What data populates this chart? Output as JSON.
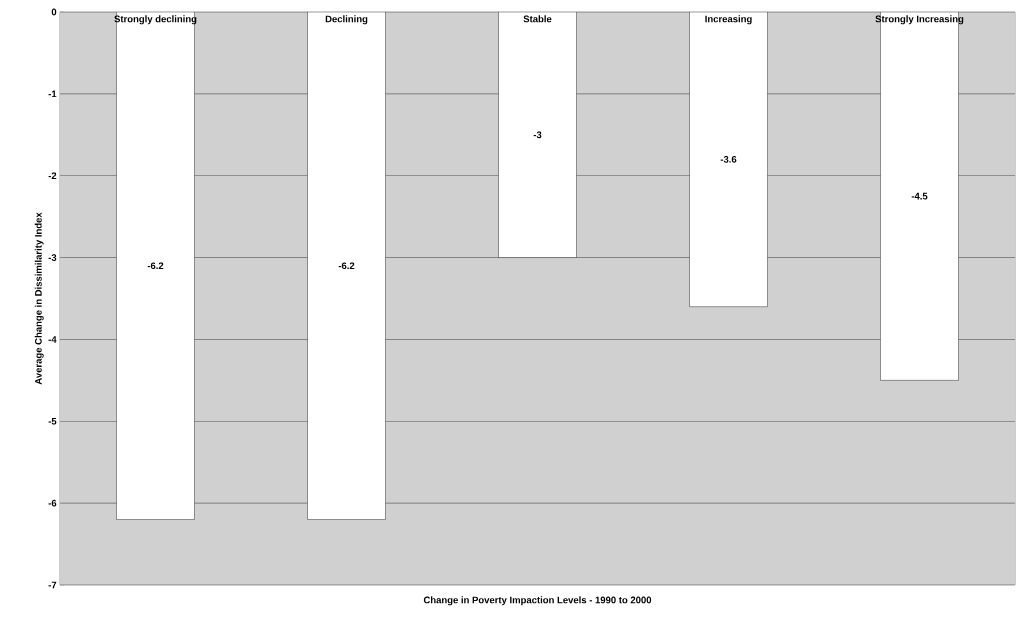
{
  "chart_data": {
    "type": "bar",
    "xlabel": "Change in Poverty Impaction Levels - 1990 to 2000",
    "ylabel": "Average Change in Dissimilarity Index",
    "categories": [
      "Strongly declining",
      "Declining",
      "Stable",
      "Increasing",
      "Strongly Increasing"
    ],
    "values": [
      -6.2,
      -6.2,
      -3,
      -3.6,
      -4.5
    ],
    "color": "#ffffff",
    "ylim": [
      -7,
      0
    ],
    "yticks": [
      -7,
      -6,
      -5,
      -4,
      -3,
      -2,
      -1,
      0
    ],
    "grid": "y",
    "data_labels": true
  }
}
